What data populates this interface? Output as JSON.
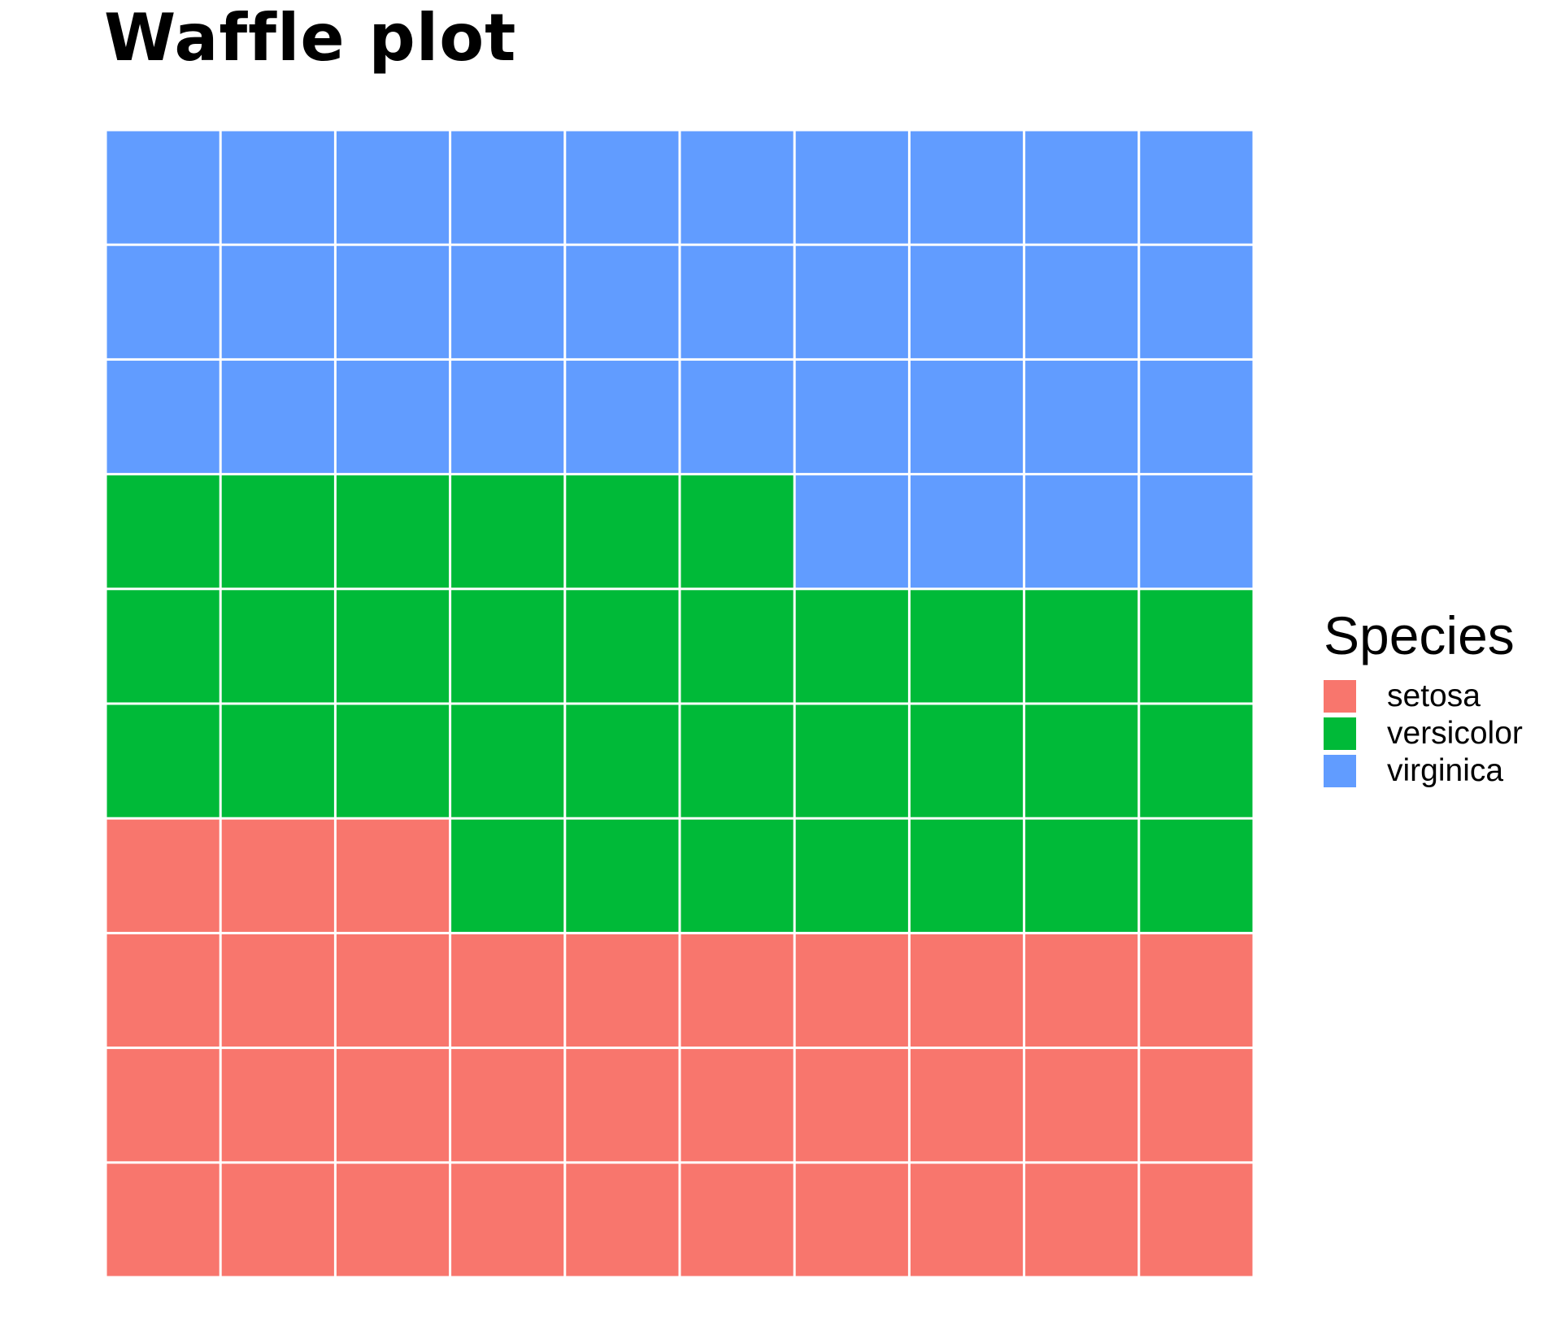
{
  "chart_data": {
    "type": "waffle",
    "title": "Waffle plot",
    "grid_rows": 10,
    "grid_cols": 10,
    "fill_order": "row-wise from bottom-left, left to right",
    "legend": {
      "title": "Species",
      "placement": "right"
    },
    "categories": [
      "setosa",
      "versicolor",
      "virginica"
    ],
    "values": [
      33,
      33,
      34
    ],
    "colors": {
      "setosa": "#F8766D",
      "versicolor": "#00BA38",
      "virginica": "#619CFF"
    }
  }
}
